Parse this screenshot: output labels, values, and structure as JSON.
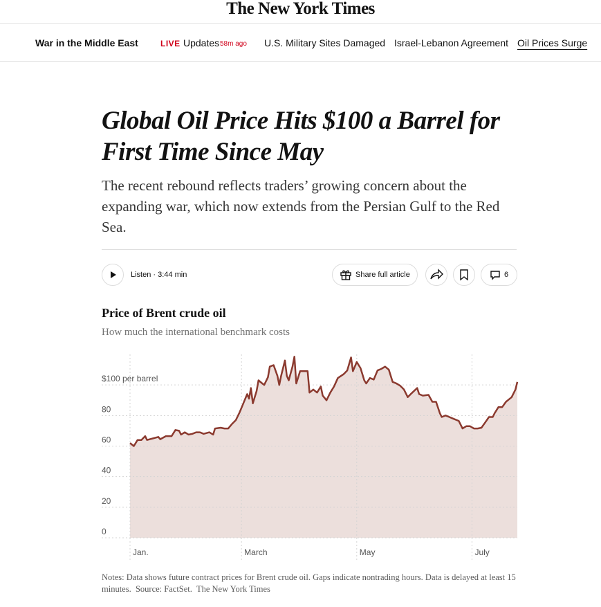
{
  "masthead": "The New York Times",
  "nav": {
    "section": "War in the Middle East",
    "live": "LIVE",
    "updates": "Updates",
    "ago": "58m ago",
    "links": [
      "U.S. Military Sites Damaged",
      "Israel-Lebanon Agreement",
      "Oil Prices Surge"
    ]
  },
  "article": {
    "headline": "Global Oil Price Hits $100 a Barrel for First Time Since May",
    "summary": "The recent rebound reflects traders’ growing concern about the expanding war, which now extends from the Persian Gulf to the Red Sea.",
    "listen": "Listen · 3:44 min",
    "share": "Share full article",
    "comments": "6"
  },
  "chart_data": {
    "type": "area",
    "title": "Price of Brent crude oil",
    "subtitle": "How much the international benchmark costs",
    "x": [
      0,
      2,
      4,
      6,
      8,
      9,
      12,
      15,
      16,
      19,
      22,
      24,
      26,
      27,
      29,
      31,
      33,
      35,
      37,
      39,
      42,
      44,
      45,
      48,
      50,
      52,
      54,
      56,
      58,
      60,
      62,
      63,
      64,
      65,
      67,
      68,
      70,
      71,
      73,
      74,
      76,
      78,
      79,
      80,
      82,
      83,
      84,
      86,
      87,
      88,
      90,
      92,
      94,
      95,
      97,
      99,
      101,
      102,
      104,
      106,
      108,
      110,
      113,
      115,
      117,
      118,
      120,
      122,
      124,
      125,
      127,
      129,
      131,
      133,
      135,
      137,
      139,
      141,
      143,
      145,
      147,
      149,
      152,
      153,
      155,
      158,
      160,
      162,
      164,
      165,
      167,
      169,
      171,
      174,
      176,
      178,
      180,
      182,
      184,
      186,
      188,
      190,
      192,
      193,
      195,
      197,
      199,
      200,
      202,
      204,
      205
    ],
    "values": [
      62,
      60,
      64,
      64,
      66.5,
      64,
      65,
      66,
      64.5,
      66.5,
      66.5,
      70.5,
      70,
      67.5,
      69,
      67.5,
      68,
      69,
      69,
      68,
      69,
      67.5,
      71.5,
      72,
      71.5,
      71.5,
      74.5,
      77,
      82,
      88,
      94,
      91,
      98,
      88,
      96,
      103,
      101,
      100,
      105,
      112,
      113,
      106,
      100,
      106,
      116,
      106,
      103,
      112,
      118.5,
      101,
      109,
      109,
      109,
      95,
      97,
      95,
      99,
      93,
      90,
      95,
      99,
      104.5,
      107,
      109.5,
      118,
      109,
      115,
      111,
      103,
      101,
      104.5,
      103.5,
      109.5,
      110.5,
      112,
      110,
      102,
      101,
      99.5,
      97,
      92,
      94.5,
      98,
      94,
      93,
      93.5,
      89,
      89,
      81.5,
      79,
      80,
      79,
      78,
      76.5,
      71.5,
      73,
      73,
      71.5,
      71.5,
      72,
      75.5,
      79,
      79,
      81.5,
      85.5,
      85.5,
      89,
      90,
      92,
      97,
      102
    ],
    "color": "#8b3a2f",
    "fill": "#ecdfdc",
    "xlim": [
      0,
      205
    ],
    "xticks": [
      {
        "value": 0,
        "label": "Jan."
      },
      {
        "value": 59,
        "label": "March"
      },
      {
        "value": 120,
        "label": "May"
      },
      {
        "value": 181,
        "label": "July"
      }
    ],
    "ylim": [
      0,
      120
    ],
    "yticks": [
      0,
      20,
      40,
      60,
      80,
      {
        "value": 100,
        "label": "$100 per barrel"
      }
    ],
    "grid": true,
    "notes": "Notes: Data shows future contract prices for Brent crude oil. Gaps indicate nontrading hours. Data is delayed at least 15 minutes.",
    "source": "Source: FactSet.",
    "credit": "The New York Times"
  }
}
